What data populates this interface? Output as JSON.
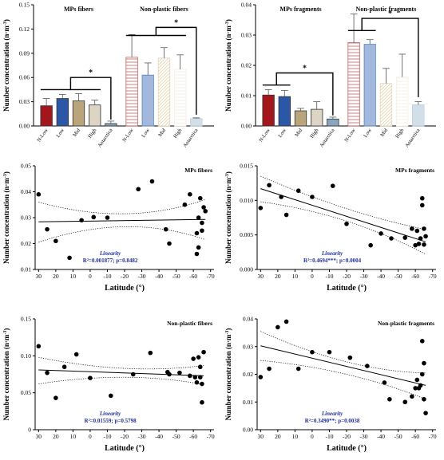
{
  "chart_data": [
    {
      "type": "bar",
      "panel": "top-left",
      "ylabel": "Number concentration (n·m⁻³)",
      "ylim": [
        0,
        0.15
      ],
      "yticks": [
        "0.00",
        "0.03",
        "0.06",
        "0.09",
        "0.12",
        "0.15"
      ],
      "group_labels": [
        "MPs fibers",
        "Non-plastic fibers"
      ],
      "categories": [
        "N-Low",
        "Low",
        "Mid",
        "High",
        "Antarctica",
        "N-Low",
        "Low",
        "Mid",
        "High",
        "Antarctica"
      ],
      "values": [
        0.025,
        0.034,
        0.031,
        0.026,
        0.003,
        0.085,
        0.063,
        0.084,
        0.07,
        0.009
      ],
      "errors": [
        0.009,
        0.005,
        0.009,
        0.006,
        0.003,
        0.028,
        0.015,
        0.013,
        0.018,
        0.001
      ],
      "colors": [
        "#a3161c",
        "#2b57a6",
        "#b9a47c",
        "#dcd5c4",
        "#8aa5bf",
        "#c95c5c",
        "#6b8fc9",
        "#e2d4b0",
        "#f4efe2",
        "#b7ccdc"
      ],
      "significance": [
        "*",
        "*"
      ]
    },
    {
      "type": "bar",
      "panel": "top-right",
      "ylabel": "Number concentration (n·m⁻³)",
      "ylim": [
        0,
        0.04
      ],
      "yticks": [
        "0.00",
        "0.01",
        "0.02",
        "0.03",
        "0.04"
      ],
      "group_labels": [
        "MPs fragments",
        "Non-plastic fragments"
      ],
      "categories": [
        "N-Low",
        "Low",
        "Mid",
        "High",
        "Antarctica",
        "N-Low",
        "Low",
        "Mid",
        "High",
        "Antarctica"
      ],
      "values": [
        0.0102,
        0.0097,
        0.005,
        0.0055,
        0.0023,
        0.0275,
        0.027,
        0.014,
        0.0162,
        0.007
      ],
      "errors": [
        0.0018,
        0.002,
        0.0008,
        0.0025,
        0.0006,
        0.0095,
        0.0015,
        0.005,
        0.0075,
        0.001
      ],
      "colors": [
        "#a3161c",
        "#2b57a6",
        "#b9a47c",
        "#dcd5c4",
        "#8aa5bf",
        "#c95c5c",
        "#6b8fc9",
        "#e2d4b0",
        "#f4efe2",
        "#b7ccdc"
      ],
      "significance": [
        "*",
        "*"
      ]
    },
    {
      "type": "scatter",
      "panel": "middle-left",
      "title": "MPs fibers",
      "xlabel": "Latitude (°)",
      "ylabel": "Number concentration (n·m⁻³)",
      "xlim": [
        32,
        -72
      ],
      "ylim": [
        0.01,
        0.05
      ],
      "xticks": [
        "30",
        "20",
        "10",
        "0",
        "-10",
        "-20",
        "-30",
        "-40",
        "-50",
        "-60",
        "-70"
      ],
      "yticks": [
        "0.01",
        "0.02",
        "0.03",
        "0.04",
        "0.05"
      ],
      "x": [
        30,
        25,
        20,
        12,
        5,
        -2,
        -10,
        -28,
        -36,
        -44,
        -46,
        -55,
        -58,
        -62,
        -62,
        -63,
        -63,
        -64,
        -65,
        -65,
        -66,
        -67
      ],
      "y": [
        0.039,
        0.0255,
        0.021,
        0.0145,
        0.029,
        0.0302,
        0.03,
        0.041,
        0.044,
        0.0255,
        0.02,
        0.035,
        0.039,
        0.024,
        0.016,
        0.0185,
        0.03,
        0.0375,
        0.028,
        0.025,
        0.034,
        0.0325
      ],
      "fit": {
        "x": [
          30,
          -67
        ],
        "y": [
          0.0284,
          0.0293
        ]
      },
      "ci_upper": {
        "x": [
          30,
          -20,
          -67
        ],
        "y": [
          0.036,
          0.0315,
          0.037
        ]
      },
      "ci_lower": {
        "x": [
          30,
          -20,
          -67
        ],
        "y": [
          0.0205,
          0.0265,
          0.0215
        ]
      },
      "annotation": {
        "label": "Linearity",
        "stats": "R²=0.001877; p=0.8482"
      }
    },
    {
      "type": "scatter",
      "panel": "middle-right",
      "title": "MPs fragments",
      "xlabel": "Latitude (°)",
      "ylabel": "Number concentration (n·m⁻³)",
      "xlim": [
        32,
        -72
      ],
      "ylim": [
        0,
        0.015
      ],
      "xticks": [
        "30",
        "20",
        "10",
        "0",
        "-10",
        "-20",
        "-30",
        "-40",
        "-50",
        "-60",
        "-70"
      ],
      "yticks": [
        "0.000",
        "0.005",
        "0.010",
        "0.015"
      ],
      "x": [
        30,
        25,
        18,
        15,
        8,
        0,
        -12,
        -20,
        -34,
        -40,
        -46,
        -54,
        -58,
        -60,
        -61,
        -62,
        -63,
        -64,
        -64,
        -65,
        -65,
        -66
      ],
      "y": [
        0.0089,
        0.0122,
        0.0105,
        0.0079,
        0.0114,
        0.0105,
        0.0121,
        0.0066,
        0.0035,
        0.0052,
        0.0045,
        0.0046,
        0.0059,
        0.0035,
        0.0056,
        0.0037,
        0.0045,
        0.0093,
        0.0103,
        0.0059,
        0.0036,
        0.0048
      ],
      "fit": {
        "x": [
          30,
          -66
        ],
        "y": [
          0.0117,
          0.004
        ]
      },
      "ci_upper": {
        "x": [
          30,
          -20,
          -66
        ],
        "y": [
          0.0135,
          0.0088,
          0.0058
        ]
      },
      "ci_lower": {
        "x": [
          30,
          -20,
          -66
        ],
        "y": [
          0.0098,
          0.007,
          0.0022
        ]
      },
      "annotation": {
        "label": "Linearity",
        "stats": "R²=0.4694***; p=0.0004"
      }
    },
    {
      "type": "scatter",
      "panel": "bottom-left",
      "title": "Non-plastic fibers",
      "xlabel": "Latitude (°)",
      "ylabel": "Number concentration (n·m⁻³)",
      "xlim": [
        32,
        -72
      ],
      "ylim": [
        0,
        0.15
      ],
      "xticks": [
        "30",
        "20",
        "10",
        "0",
        "-10",
        "-20",
        "-30",
        "-40",
        "-50",
        "-60",
        "-70"
      ],
      "yticks": [
        "0",
        "0.05",
        "0.10",
        "0.15"
      ],
      "x": [
        30,
        25,
        20,
        15,
        8,
        0,
        -12,
        -25,
        -35,
        -45,
        -46,
        -52,
        -58,
        -60,
        -61,
        -62,
        -63,
        -64,
        -64,
        -65,
        -65,
        -66
      ],
      "y": [
        0.113,
        0.077,
        0.043,
        0.085,
        0.102,
        0.07,
        0.046,
        0.075,
        0.104,
        0.078,
        0.075,
        0.077,
        0.073,
        0.096,
        0.071,
        0.064,
        0.098,
        0.085,
        0.071,
        0.037,
        0.062,
        0.105
      ],
      "fit": {
        "x": [
          30,
          -66
        ],
        "y": [
          0.081,
          0.073
        ]
      },
      "ci_upper": {
        "x": [
          30,
          -20,
          -66
        ],
        "y": [
          0.098,
          0.083,
          0.087
        ]
      },
      "ci_lower": {
        "x": [
          30,
          -20,
          -66
        ],
        "y": [
          0.062,
          0.071,
          0.061
        ]
      },
      "annotation": {
        "label": "Linearity",
        "stats": "R²=0.01559; p=0.5798"
      }
    },
    {
      "type": "scatter",
      "panel": "bottom-right",
      "title": "Non-plastic fragments",
      "xlabel": "Latitude (°)",
      "ylabel": "Number concentration (n·m⁻³)",
      "xlim": [
        32,
        -72
      ],
      "ylim": [
        0,
        0.04
      ],
      "xticks": [
        "30",
        "20",
        "10",
        "0",
        "-10",
        "-20",
        "-30",
        "-40",
        "-50",
        "-60",
        "-70"
      ],
      "yticks": [
        "0.00",
        "0.01",
        "0.02",
        "0.03",
        "0.04"
      ],
      "x": [
        30,
        25,
        20,
        15,
        8,
        0,
        -10,
        -22,
        -32,
        -42,
        -45,
        -54,
        -58,
        -60,
        -61,
        -62,
        -63,
        -64,
        -64,
        -65,
        -65,
        -66
      ],
      "y": [
        0.019,
        0.022,
        0.037,
        0.039,
        0.022,
        0.028,
        0.028,
        0.026,
        0.023,
        0.017,
        0.011,
        0.01,
        0.012,
        0.015,
        0.018,
        0.015,
        0.016,
        0.02,
        0.032,
        0.024,
        0.011,
        0.006
      ],
      "fit": {
        "x": [
          30,
          -66
        ],
        "y": [
          0.0303,
          0.016
        ]
      },
      "ci_upper": {
        "x": [
          30,
          -20,
          -66
        ],
        "y": [
          0.0355,
          0.0245,
          0.0205
        ]
      },
      "ci_lower": {
        "x": [
          30,
          -20,
          -66
        ],
        "y": [
          0.025,
          0.02,
          0.011
        ]
      },
      "annotation": {
        "label": "Linearity",
        "stats": "R²=0.3490**; p=0.0038"
      }
    }
  ]
}
